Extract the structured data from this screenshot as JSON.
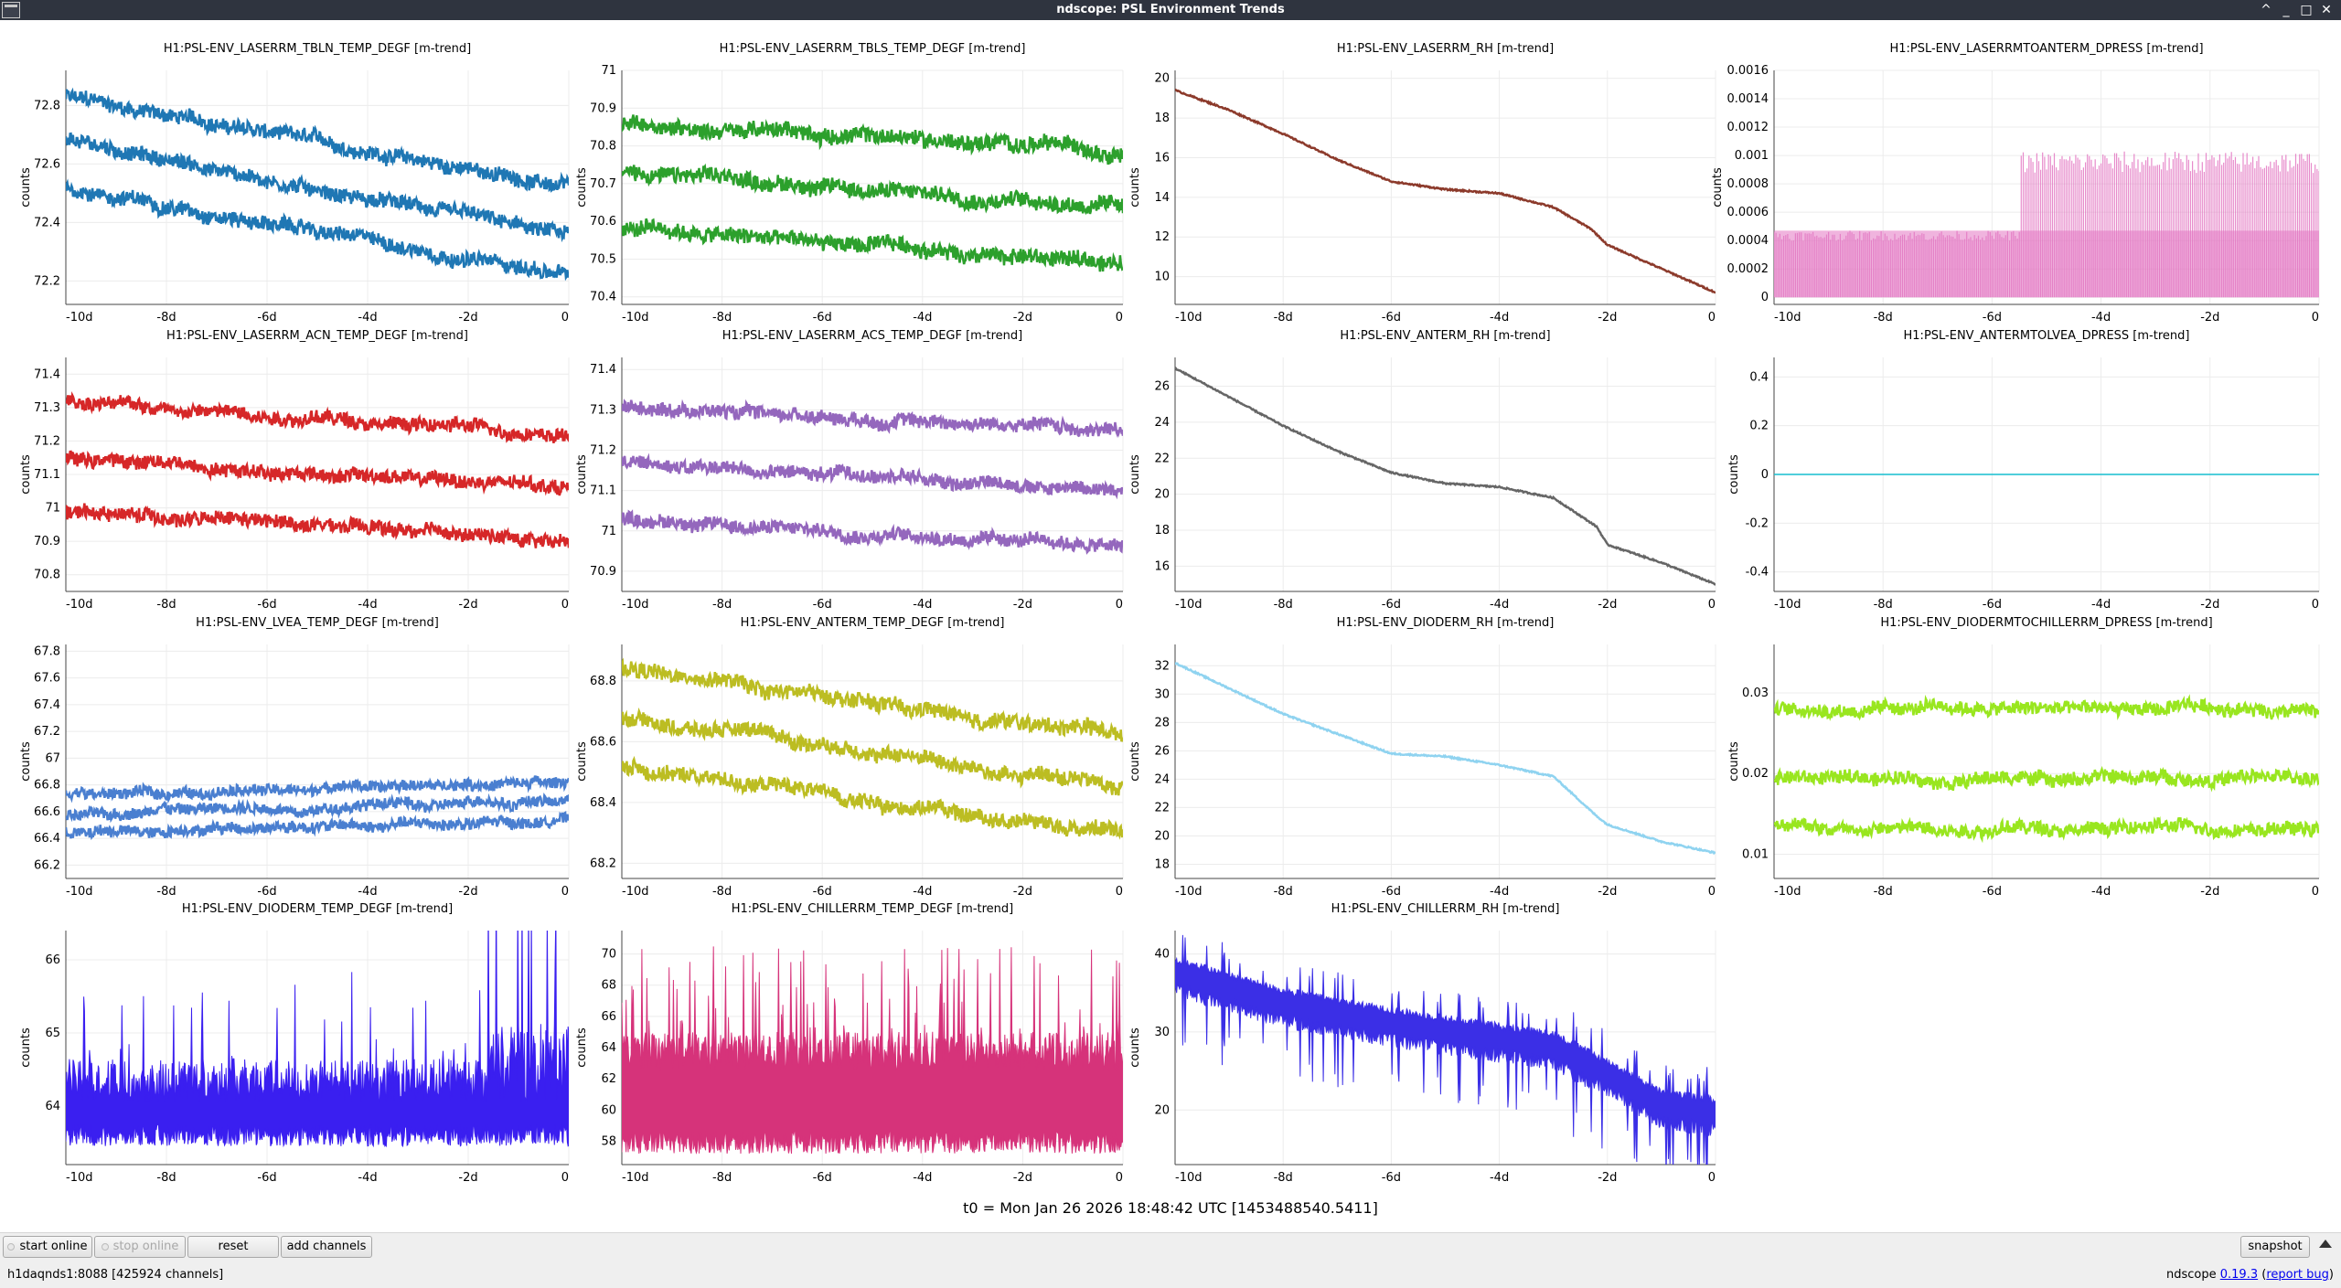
{
  "window": {
    "title": "ndscope: PSL Environment Trends",
    "controls": [
      "^",
      "_",
      "□",
      "✕"
    ]
  },
  "common_axes": {
    "ylabel": "counts",
    "x_ticks": [
      "-10d",
      "-8d",
      "-6d",
      "-4d",
      "-2d",
      "0"
    ],
    "x_range": [
      -10,
      0
    ],
    "grid": true
  },
  "plots": [
    {
      "title": "H1:PSL-ENV_LASERRM_TBLN_TEMP_DEGF [m-trend]",
      "color": "#1f77b4",
      "y_ticks": [
        "72.2",
        "72.4",
        "72.6",
        "72.8"
      ],
      "ylim": [
        72.12,
        72.92
      ],
      "style": "band3",
      "y_start": [
        72.83,
        72.68,
        72.52
      ],
      "y_end": [
        72.52,
        72.35,
        72.22
      ],
      "noise": 0.03
    },
    {
      "title": "H1:PSL-ENV_LASERRM_TBLS_TEMP_DEGF [m-trend]",
      "color": "#2ca02c",
      "y_ticks": [
        "70.4",
        "70.5",
        "70.6",
        "70.7",
        "70.8",
        "70.9",
        "71"
      ],
      "ylim": [
        70.38,
        71.0
      ],
      "style": "band3",
      "y_start": [
        70.86,
        70.73,
        70.58
      ],
      "y_end": [
        70.79,
        70.64,
        70.49
      ],
      "noise": 0.025
    },
    {
      "title": "H1:PSL-ENV_LASERRM_RH [m-trend]",
      "color": "#8c3a2b",
      "y_ticks": [
        "10",
        "12",
        "14",
        "16",
        "18",
        "20"
      ],
      "ylim": [
        8.6,
        20.4
      ],
      "style": "line",
      "points": [
        [
          -10,
          19.4
        ],
        [
          -9,
          18.4
        ],
        [
          -8,
          17.2
        ],
        [
          -7,
          15.9
        ],
        [
          -6,
          14.8
        ],
        [
          -5,
          14.4
        ],
        [
          -4,
          14.2
        ],
        [
          -3,
          13.5
        ],
        [
          -2.3,
          12.4
        ],
        [
          -2,
          11.6
        ],
        [
          -1,
          10.4
        ],
        [
          0,
          9.2
        ]
      ]
    },
    {
      "title": "H1:PSL-ENV_LASERRMTOANTERM_DPRESS [m-trend]",
      "color": "#e377c2",
      "y_ticks": [
        "0",
        "0.0002",
        "0.0004",
        "0.0006",
        "0.0008",
        "0.001",
        "0.0012",
        "0.0014",
        "0.0016"
      ],
      "ylim": [
        -5e-05,
        0.0016
      ],
      "style": "spiky_dpress"
    },
    {
      "title": "H1:PSL-ENV_LASERRM_ACN_TEMP_DEGF [m-trend]",
      "color": "#d62728",
      "y_ticks": [
        "70.8",
        "70.9",
        "71",
        "71.1",
        "71.2",
        "71.3",
        "71.4"
      ],
      "ylim": [
        70.75,
        71.45
      ],
      "style": "band3",
      "y_start": [
        71.32,
        71.15,
        70.99
      ],
      "y_end": [
        71.22,
        71.06,
        70.9
      ],
      "noise": 0.025
    },
    {
      "title": "H1:PSL-ENV_LASERRM_ACS_TEMP_DEGF [m-trend]",
      "color": "#9467bd",
      "y_ticks": [
        "70.9",
        "71",
        "71.1",
        "71.2",
        "71.3",
        "71.4"
      ],
      "ylim": [
        70.85,
        71.43
      ],
      "style": "band3",
      "y_start": [
        71.31,
        71.17,
        71.03
      ],
      "y_end": [
        71.25,
        71.1,
        70.96
      ],
      "noise": 0.02
    },
    {
      "title": "H1:PSL-ENV_ANTERM_RH [m-trend]",
      "color": "#666666",
      "y_ticks": [
        "16",
        "18",
        "20",
        "22",
        "24",
        "26"
      ],
      "ylim": [
        14.6,
        27.6
      ],
      "style": "line",
      "points": [
        [
          -10,
          27.0
        ],
        [
          -9,
          25.4
        ],
        [
          -8,
          23.8
        ],
        [
          -7,
          22.4
        ],
        [
          -6,
          21.2
        ],
        [
          -5,
          20.6
        ],
        [
          -4,
          20.4
        ],
        [
          -3,
          19.8
        ],
        [
          -2.2,
          18.2
        ],
        [
          -2,
          17.2
        ],
        [
          -1,
          16.2
        ],
        [
          0,
          15.0
        ]
      ]
    },
    {
      "title": "H1:PSL-ENV_ANTERMTOLVEA_DPRESS [m-trend]",
      "color": "#17becf",
      "y_ticks": [
        "-0.4",
        "-0.2",
        "0",
        "0.2",
        "0.4"
      ],
      "ylim": [
        -0.48,
        0.48
      ],
      "style": "flat"
    },
    {
      "title": "H1:PSL-ENV_LVEA_TEMP_DEGF [m-trend]",
      "color": "#4a7fd0",
      "y_ticks": [
        "66.2",
        "66.4",
        "66.6",
        "66.8",
        "67",
        "67.2",
        "67.4",
        "67.6",
        "67.8"
      ],
      "ylim": [
        66.1,
        67.85
      ],
      "style": "band3",
      "y_start": [
        66.72,
        66.58,
        66.44
      ],
      "y_end": [
        66.82,
        66.68,
        66.54
      ],
      "noise": 0.05
    },
    {
      "title": "H1:PSL-ENV_ANTERM_TEMP_DEGF [m-trend]",
      "color": "#bcbd22",
      "y_ticks": [
        "68.2",
        "68.4",
        "68.6",
        "68.8"
      ],
      "ylim": [
        68.15,
        68.92
      ],
      "style": "band3",
      "y_start": [
        68.84,
        68.68,
        68.52
      ],
      "y_end": [
        68.62,
        68.45,
        68.3
      ],
      "noise": 0.03
    },
    {
      "title": "H1:PSL-ENV_DIODERM_RH [m-trend]",
      "color": "#8fd3f0",
      "y_ticks": [
        "18",
        "20",
        "22",
        "24",
        "26",
        "28",
        "30",
        "32"
      ],
      "ylim": [
        17.0,
        33.5
      ],
      "style": "line",
      "points": [
        [
          -10,
          32.2
        ],
        [
          -9,
          30.4
        ],
        [
          -8,
          28.6
        ],
        [
          -7,
          27.2
        ],
        [
          -6,
          25.8
        ],
        [
          -5,
          25.6
        ],
        [
          -4,
          25.0
        ],
        [
          -3,
          24.2
        ],
        [
          -2.2,
          21.4
        ],
        [
          -2,
          20.8
        ],
        [
          -1,
          19.6
        ],
        [
          0,
          18.8
        ]
      ]
    },
    {
      "title": "H1:PSL-ENV_DIODERMTOCHILLERRM_DPRESS [m-trend]",
      "color": "#99e61f",
      "y_ticks": [
        "0.01",
        "0.02",
        "0.03"
      ],
      "ylim": [
        0.007,
        0.036
      ],
      "style": "band3",
      "y_start": [
        0.028,
        0.0195,
        0.0133
      ],
      "y_end": [
        0.028,
        0.0195,
        0.0133
      ],
      "noise": 0.001
    },
    {
      "title": "H1:PSL-ENV_DIODERM_TEMP_DEGF [m-trend]",
      "color": "#3a1ff0",
      "y_ticks": [
        "64",
        "65",
        "66"
      ],
      "ylim": [
        63.2,
        66.4
      ],
      "style": "spiky_temp"
    },
    {
      "title": "H1:PSL-ENV_CHILLERRM_TEMP_DEGF [m-trend]",
      "color": "#d6337a",
      "y_ticks": [
        "58",
        "60",
        "62",
        "64",
        "66",
        "68",
        "70"
      ],
      "ylim": [
        56.5,
        71.5
      ],
      "style": "spiky_chill"
    },
    {
      "title": "H1:PSL-ENV_CHILLERRM_RH [m-trend]",
      "color": "#3b2fe6",
      "y_ticks": [
        "20",
        "30",
        "40"
      ],
      "ylim": [
        13.0,
        43.0
      ],
      "style": "spiky_rh",
      "points": [
        [
          -10,
          38.0
        ],
        [
          -8,
          34.0
        ],
        [
          -6,
          31.5
        ],
        [
          -4,
          29.5
        ],
        [
          -3,
          28.5
        ],
        [
          -2,
          25.0
        ],
        [
          -1,
          21.0
        ],
        [
          0,
          20.0
        ]
      ]
    }
  ],
  "t0_label": "t0 = Mon Jan 26 2026 18:48:42 UTC [1453488540.5411]",
  "controls": {
    "start_online": "start online",
    "stop_online": "stop online",
    "reset": "reset",
    "add_channels": "add channels",
    "snapshot": "snapshot"
  },
  "status": {
    "server": "h1daqnds1:8088  [425924 channels]",
    "app_name": "ndscope",
    "version": "0.19.3",
    "report_bug": "report bug"
  }
}
